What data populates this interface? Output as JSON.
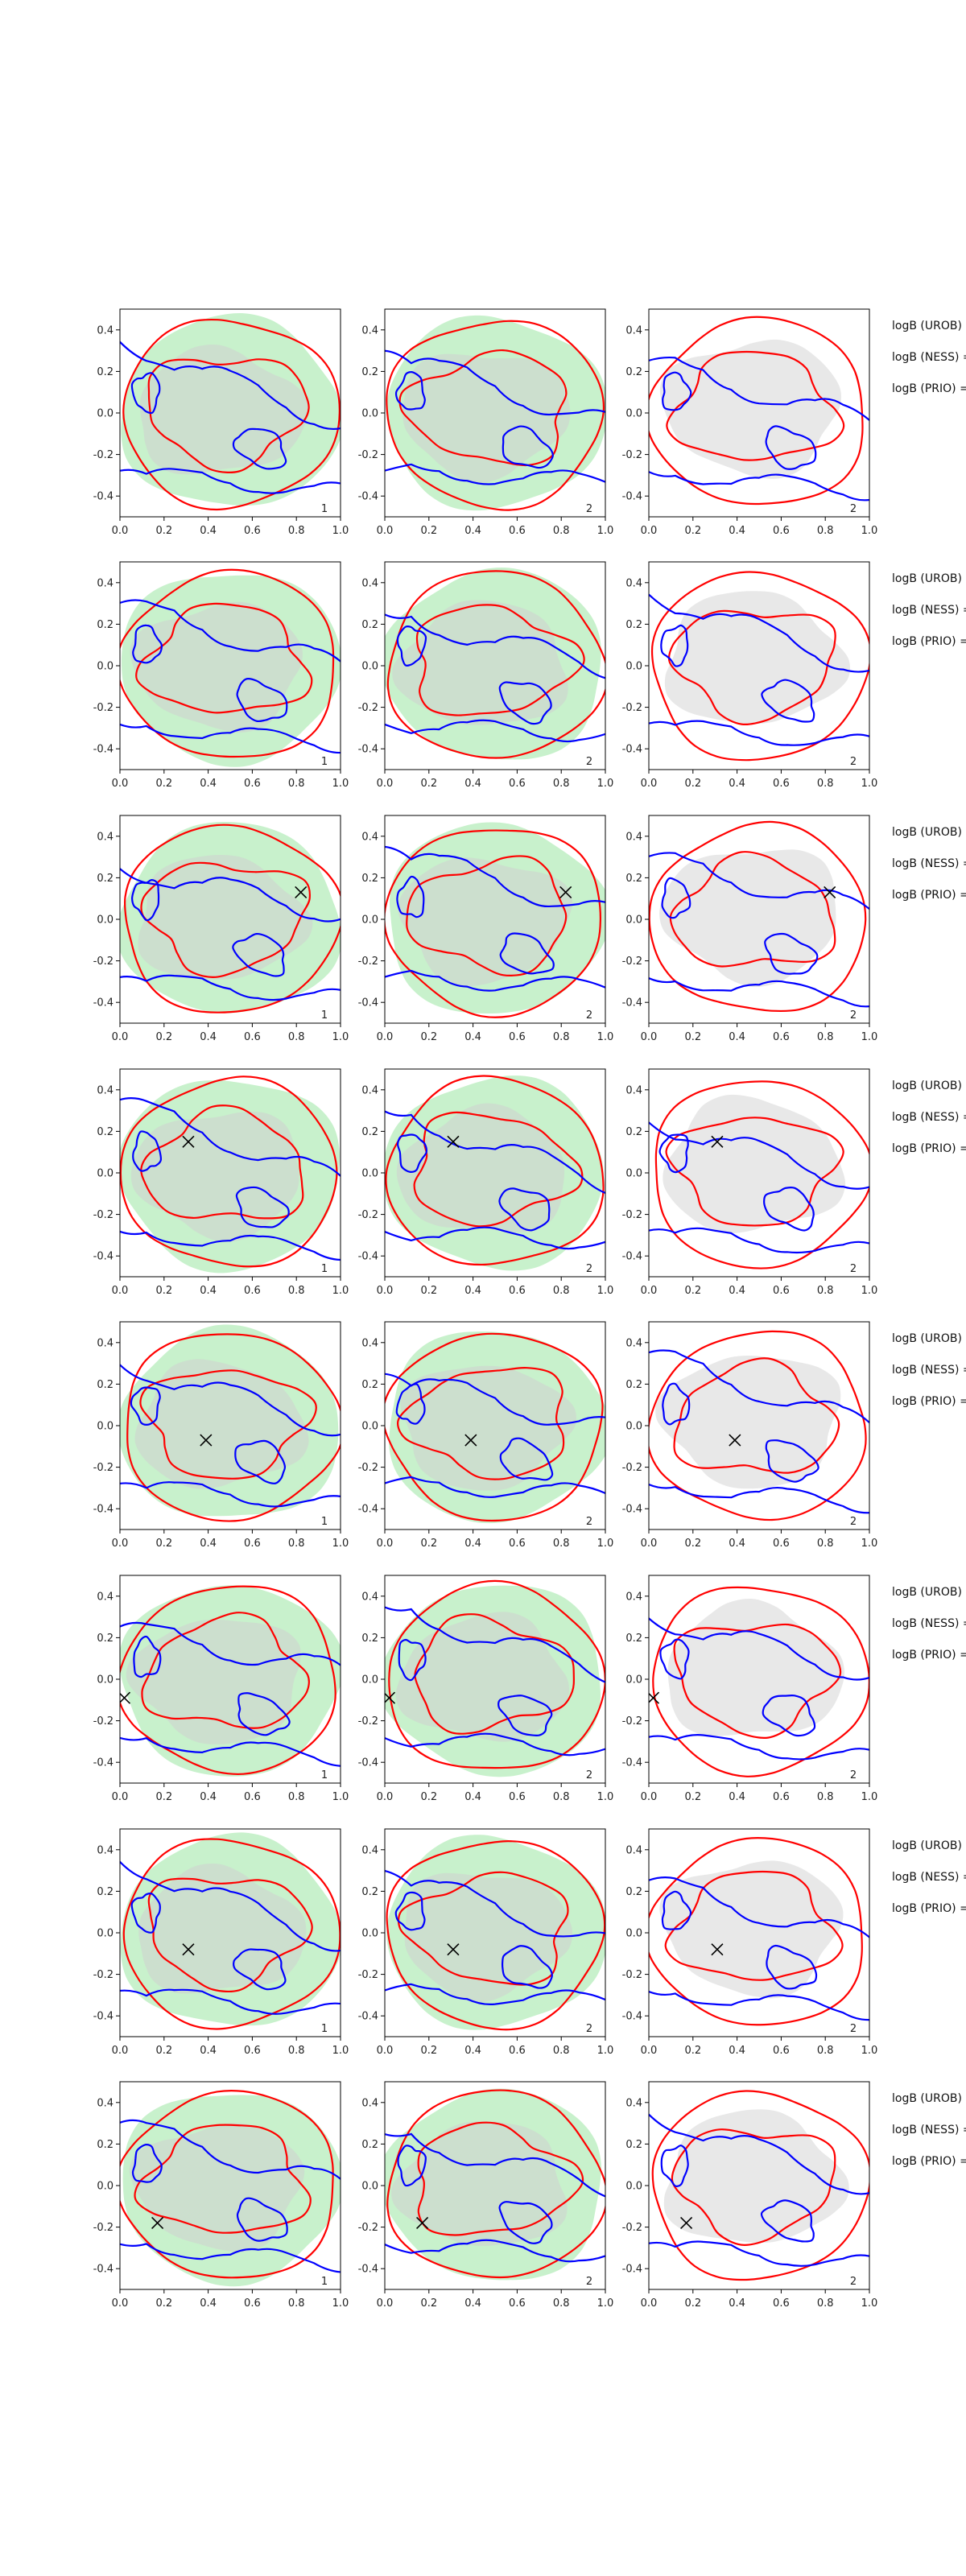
{
  "figure": {
    "title": "",
    "x_ticks": [
      "0.0",
      "0.2",
      "0.4",
      "0.6",
      "0.8",
      "1.0"
    ],
    "y_ticks": [
      "0.4",
      "0.2",
      "0.0",
      "-0.2",
      "-0.4"
    ],
    "side_labels": [
      "logB (UROB) =",
      "logB (NESS) =",
      "logB (PRIO) ="
    ],
    "colors": {
      "region_inner": "#d0d0d0",
      "region_outer": "#86e08e",
      "contour_red": "#ff0000",
      "contour_blue": "#0000ff",
      "marker": "#000000"
    }
  },
  "chart_data": {
    "type": "contour",
    "rows": 8,
    "columns": 3,
    "xlim": [
      0.0,
      1.0
    ],
    "ylim": [
      -0.5,
      0.5
    ],
    "xlabel": "",
    "ylabel": "",
    "panel_labels": [
      [
        "1",
        "2",
        "2"
      ],
      [
        "1",
        "2",
        "2"
      ],
      [
        "1",
        "2",
        "2"
      ],
      [
        "1",
        "2",
        "2"
      ],
      [
        "1",
        "2",
        "2"
      ],
      [
        "1",
        "2",
        "2"
      ],
      [
        "1",
        "2",
        "2"
      ],
      [
        "1",
        "2",
        "2"
      ]
    ],
    "markers": [
      null,
      null,
      {
        "x": 0.82,
        "y": 0.13
      },
      {
        "x": 0.31,
        "y": 0.15
      },
      {
        "x": 0.39,
        "y": -0.07
      },
      {
        "x": 0.02,
        "y": -0.09
      },
      {
        "x": 0.31,
        "y": -0.08
      },
      {
        "x": 0.17,
        "y": -0.18
      }
    ],
    "column_shading": [
      "green",
      "green",
      "gray"
    ],
    "series": [
      {
        "name": "red contours",
        "color": "#ff0000"
      },
      {
        "name": "blue contours",
        "color": "#0000ff"
      }
    ]
  }
}
